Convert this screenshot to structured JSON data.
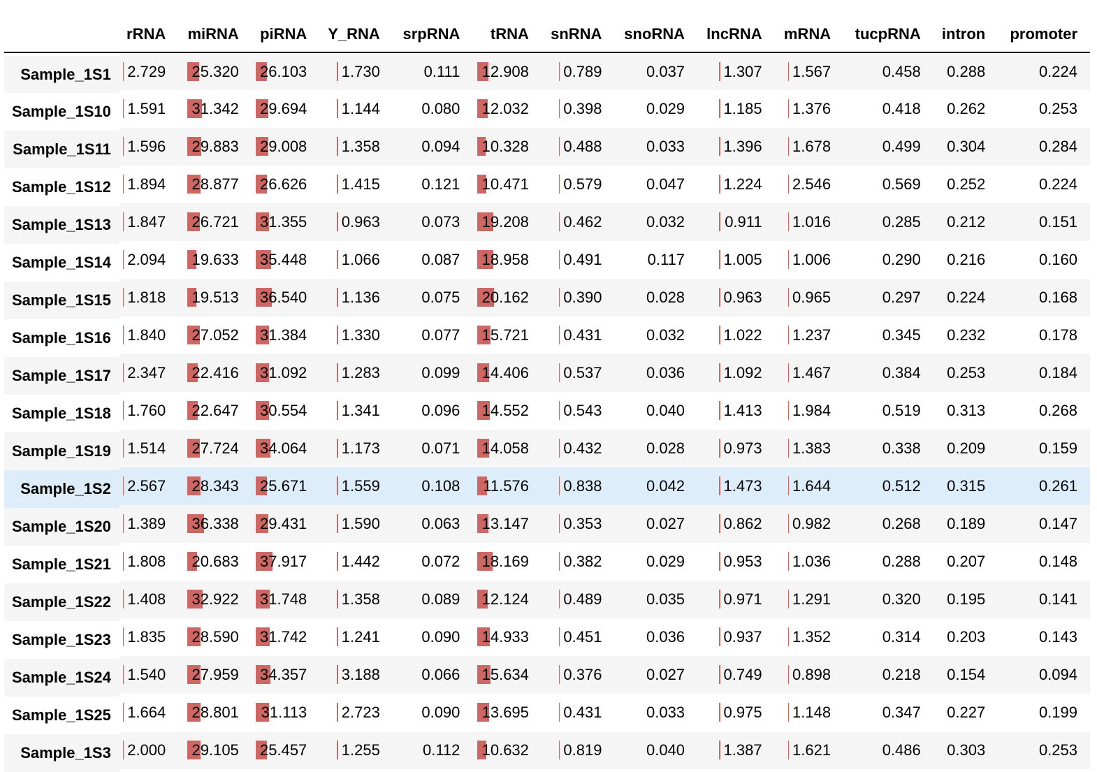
{
  "table": {
    "columns": [
      "rRNA",
      "miRNA",
      "piRNA",
      "Y_RNA",
      "srpRNA",
      "tRNA",
      "snRNA",
      "snoRNA",
      "lncRNA",
      "mRNA",
      "tucpRNA",
      "intron",
      "promoter"
    ],
    "bar_columns": [
      "rRNA",
      "miRNA",
      "piRNA",
      "Y_RNA",
      "tRNA",
      "snRNA",
      "lncRNA",
      "mRNA"
    ],
    "bar_color": "#cd6763",
    "highlight_color": "#ddeefa",
    "stripe_color": "#f5f5f5",
    "highlighted_row": "Sample_1S2",
    "rows": [
      {
        "name": "Sample_1S1",
        "values": [
          "2.729",
          "25.320",
          "26.103",
          "1.730",
          "0.111",
          "12.908",
          "0.789",
          "0.037",
          "1.307",
          "1.567",
          "0.458",
          "0.288",
          "0.224"
        ]
      },
      {
        "name": "Sample_1S10",
        "values": [
          "1.591",
          "31.342",
          "29.694",
          "1.144",
          "0.080",
          "12.032",
          "0.398",
          "0.029",
          "1.185",
          "1.376",
          "0.418",
          "0.262",
          "0.253"
        ]
      },
      {
        "name": "Sample_1S11",
        "values": [
          "1.596",
          "29.883",
          "29.008",
          "1.358",
          "0.094",
          "10.328",
          "0.488",
          "0.033",
          "1.396",
          "1.678",
          "0.499",
          "0.304",
          "0.284"
        ]
      },
      {
        "name": "Sample_1S12",
        "values": [
          "1.894",
          "28.877",
          "26.626",
          "1.415",
          "0.121",
          "10.471",
          "0.579",
          "0.047",
          "1.224",
          "2.546",
          "0.569",
          "0.252",
          "0.224"
        ]
      },
      {
        "name": "Sample_1S13",
        "values": [
          "1.847",
          "26.721",
          "31.355",
          "0.963",
          "0.073",
          "19.208",
          "0.462",
          "0.032",
          "0.911",
          "1.016",
          "0.285",
          "0.212",
          "0.151"
        ]
      },
      {
        "name": "Sample_1S14",
        "values": [
          "2.094",
          "19.633",
          "35.448",
          "1.066",
          "0.087",
          "18.958",
          "0.491",
          "0.117",
          "1.005",
          "1.006",
          "0.290",
          "0.216",
          "0.160"
        ]
      },
      {
        "name": "Sample_1S15",
        "values": [
          "1.818",
          "19.513",
          "36.540",
          "1.136",
          "0.075",
          "20.162",
          "0.390",
          "0.028",
          "0.963",
          "0.965",
          "0.297",
          "0.224",
          "0.168"
        ]
      },
      {
        "name": "Sample_1S16",
        "values": [
          "1.840",
          "27.052",
          "31.384",
          "1.330",
          "0.077",
          "15.721",
          "0.431",
          "0.032",
          "1.022",
          "1.237",
          "0.345",
          "0.232",
          "0.178"
        ]
      },
      {
        "name": "Sample_1S17",
        "values": [
          "2.347",
          "22.416",
          "31.092",
          "1.283",
          "0.099",
          "14.406",
          "0.537",
          "0.036",
          "1.092",
          "1.467",
          "0.384",
          "0.253",
          "0.184"
        ]
      },
      {
        "name": "Sample_1S18",
        "values": [
          "1.760",
          "22.647",
          "30.554",
          "1.341",
          "0.096",
          "14.552",
          "0.543",
          "0.040",
          "1.413",
          "1.984",
          "0.519",
          "0.313",
          "0.268"
        ]
      },
      {
        "name": "Sample_1S19",
        "values": [
          "1.514",
          "27.724",
          "34.064",
          "1.173",
          "0.071",
          "14.058",
          "0.432",
          "0.028",
          "0.973",
          "1.383",
          "0.338",
          "0.209",
          "0.159"
        ]
      },
      {
        "name": "Sample_1S2",
        "values": [
          "2.567",
          "28.343",
          "25.671",
          "1.559",
          "0.108",
          "11.576",
          "0.838",
          "0.042",
          "1.473",
          "1.644",
          "0.512",
          "0.315",
          "0.261"
        ]
      },
      {
        "name": "Sample_1S20",
        "values": [
          "1.389",
          "36.338",
          "29.431",
          "1.590",
          "0.063",
          "13.147",
          "0.353",
          "0.027",
          "0.862",
          "0.982",
          "0.268",
          "0.189",
          "0.147"
        ]
      },
      {
        "name": "Sample_1S21",
        "values": [
          "1.808",
          "20.683",
          "37.917",
          "1.442",
          "0.072",
          "18.169",
          "0.382",
          "0.029",
          "0.953",
          "1.036",
          "0.288",
          "0.207",
          "0.148"
        ]
      },
      {
        "name": "Sample_1S22",
        "values": [
          "1.408",
          "32.922",
          "31.748",
          "1.358",
          "0.089",
          "12.124",
          "0.489",
          "0.035",
          "0.971",
          "1.291",
          "0.320",
          "0.195",
          "0.141"
        ]
      },
      {
        "name": "Sample_1S23",
        "values": [
          "1.835",
          "28.590",
          "31.742",
          "1.241",
          "0.090",
          "14.933",
          "0.451",
          "0.036",
          "0.937",
          "1.352",
          "0.314",
          "0.203",
          "0.143"
        ]
      },
      {
        "name": "Sample_1S24",
        "values": [
          "1.540",
          "27.959",
          "34.357",
          "3.188",
          "0.066",
          "15.634",
          "0.376",
          "0.027",
          "0.749",
          "0.898",
          "0.218",
          "0.154",
          "0.094"
        ]
      },
      {
        "name": "Sample_1S25",
        "values": [
          "1.664",
          "28.801",
          "31.113",
          "2.723",
          "0.090",
          "13.695",
          "0.431",
          "0.033",
          "0.975",
          "1.148",
          "0.347",
          "0.227",
          "0.199"
        ]
      },
      {
        "name": "Sample_1S3",
        "values": [
          "2.000",
          "29.105",
          "25.457",
          "1.255",
          "0.112",
          "10.632",
          "0.819",
          "0.040",
          "1.387",
          "1.621",
          "0.486",
          "0.303",
          "0.253"
        ]
      }
    ]
  }
}
